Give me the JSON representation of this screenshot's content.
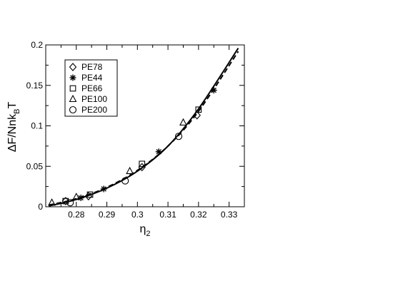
{
  "chart_data": {
    "type": "scatter",
    "xlabel": "η",
    "xlabel_sub": "2",
    "ylabel_parts": [
      "ΔF/Nnk",
      "B",
      "T"
    ],
    "xlim": [
      0.27,
      0.335
    ],
    "ylim": [
      0,
      0.2
    ],
    "x_ticks": [
      0.28,
      0.29,
      0.3,
      0.31,
      0.32,
      0.33
    ],
    "x_tick_labels": [
      "0.28",
      "0.29",
      "0.3",
      "0.31",
      "0.32",
      "0.33"
    ],
    "y_ticks": [
      0,
      0.05,
      0.1,
      0.15,
      0.2
    ],
    "y_tick_labels": [
      "0",
      "0.05",
      "0.1",
      "0.15",
      "0.2"
    ],
    "grid": false,
    "legend_position": "top-left",
    "series": [
      {
        "name": "PE78",
        "marker": "diamond",
        "points": [
          [
            0.2765,
            0.007
          ],
          [
            0.284,
            0.013
          ],
          [
            0.3015,
            0.049
          ],
          [
            0.3195,
            0.113
          ]
        ]
      },
      {
        "name": "PE44",
        "marker": "asterisk",
        "points": [
          [
            0.2815,
            0.011
          ],
          [
            0.289,
            0.022
          ],
          [
            0.307,
            0.068
          ],
          [
            0.325,
            0.144
          ]
        ]
      },
      {
        "name": "PE66",
        "marker": "square",
        "points": [
          [
            0.2765,
            0.007
          ],
          [
            0.2845,
            0.015
          ],
          [
            0.3015,
            0.053
          ],
          [
            0.32,
            0.12
          ]
        ]
      },
      {
        "name": "PE100",
        "marker": "triangle",
        "points": [
          [
            0.272,
            0.005
          ],
          [
            0.28,
            0.012
          ],
          [
            0.2975,
            0.044
          ],
          [
            0.315,
            0.104
          ]
        ]
      },
      {
        "name": "PE200",
        "marker": "circle",
        "points": [
          [
            0.278,
            0.005
          ],
          [
            0.296,
            0.032
          ],
          [
            0.3135,
            0.087
          ]
        ]
      }
    ],
    "curves": [
      {
        "style": "solid",
        "points": [
          [
            0.271,
            0.001
          ],
          [
            0.28,
            0.009
          ],
          [
            0.29,
            0.023
          ],
          [
            0.3,
            0.044
          ],
          [
            0.31,
            0.075
          ],
          [
            0.32,
            0.121
          ],
          [
            0.333,
            0.196
          ]
        ]
      },
      {
        "style": "dashed",
        "points": [
          [
            0.271,
            0.002
          ],
          [
            0.28,
            0.01
          ],
          [
            0.29,
            0.024
          ],
          [
            0.3,
            0.045
          ],
          [
            0.31,
            0.075
          ],
          [
            0.32,
            0.118
          ],
          [
            0.333,
            0.192
          ]
        ]
      }
    ]
  }
}
